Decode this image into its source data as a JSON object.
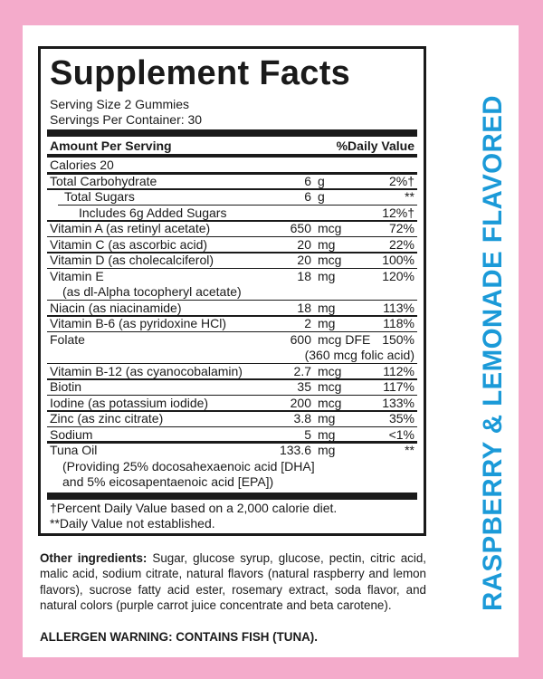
{
  "colors": {
    "background": "#f4abcb",
    "flavor_text": "#1b9ad8",
    "ink": "#1a1a1a"
  },
  "panel": {
    "title": "Supplement Facts",
    "serving_size": "Serving Size 2 Gummies",
    "servings_per_container": "Servings Per Container: 30",
    "header_amount": "Amount Per Serving",
    "header_dv": "%Daily Value",
    "rows": [
      {
        "name": "Calories  20",
        "amount": "",
        "unit": "",
        "dv": "",
        "indent": 0,
        "rule": "none"
      },
      {
        "name": "Total Carbohydrate",
        "amount": "6",
        "unit": "g",
        "dv": "2%†",
        "indent": 0,
        "rule": "medium"
      },
      {
        "name": "Total Sugars",
        "amount": "6",
        "unit": "g",
        "dv": "**",
        "indent": 1,
        "rule": "thin"
      },
      {
        "name": "Includes 6g Added Sugars",
        "amount": "",
        "unit": "",
        "dv": "12%†",
        "indent": 2,
        "rule": "thin-indent"
      },
      {
        "name": "Vitamin A (as retinyl acetate)",
        "amount": "650",
        "unit": "mcg",
        "dv": "72%",
        "indent": 0,
        "rule": "thin"
      },
      {
        "name": "Vitamin C (as ascorbic acid)",
        "amount": "20",
        "unit": "mg",
        "dv": "22%",
        "indent": 0,
        "rule": "thin"
      },
      {
        "name": "Vitamin D (as cholecalciferol)",
        "amount": "20",
        "unit": "mcg",
        "dv": "100%",
        "indent": 0,
        "rule": "thin"
      },
      {
        "name": "Vitamin E",
        "sub": "(as dl-Alpha tocopheryl acetate)",
        "amount": "18",
        "unit": "mg",
        "dv": "120%",
        "indent": 0,
        "rule": "thin"
      },
      {
        "name": "Niacin (as niacinamide)",
        "amount": "18",
        "unit": "mg",
        "dv": "113%",
        "indent": 0,
        "rule": "thin"
      },
      {
        "name": "Vitamin B-6 (as pyridoxine HCl)",
        "amount": "2",
        "unit": "mg",
        "dv": "118%",
        "indent": 0,
        "rule": "thin"
      },
      {
        "name": "Folate",
        "amount": "600",
        "unit": "mcg DFE",
        "dv": "150%",
        "sub_right": "(360 mcg folic acid)",
        "indent": 0,
        "rule": "thin"
      },
      {
        "name": "Vitamin B-12 (as cyanocobalamin)",
        "amount": "2.7",
        "unit": "mcg",
        "dv": "112%",
        "indent": 0,
        "rule": "thin"
      },
      {
        "name": "Biotin",
        "amount": "35",
        "unit": "mcg",
        "dv": "117%",
        "indent": 0,
        "rule": "thin"
      },
      {
        "name": "Iodine (as potassium iodide)",
        "amount": "200",
        "unit": "mcg",
        "dv": "133%",
        "indent": 0,
        "rule": "thin"
      },
      {
        "name": "Zinc (as zinc citrate)",
        "amount": "3.8",
        "unit": "mg",
        "dv": "35%",
        "indent": 0,
        "rule": "thin"
      },
      {
        "name": "Sodium",
        "amount": "5",
        "unit": "mg",
        "dv": "<1%",
        "indent": 0,
        "rule": "thin"
      },
      {
        "name": "Tuna Oil",
        "sub": "(Providing 25% docosahexaenoic acid [DHA]",
        "sub3": "and 5% eicosapentaenoic acid [EPA])",
        "amount": "133.6",
        "unit": "mg",
        "dv": "**",
        "indent": 0,
        "rule": "medium"
      }
    ],
    "footnote_1": "†Percent Daily Value based on a 2,000 calorie diet.",
    "footnote_2": "**Daily Value not established."
  },
  "ingredients": {
    "label": "Other ingredients:",
    "text": " Sugar, glucose syrup, glucose, pectin, citric acid, malic acid, sodium citrate, natural flavors (natural raspberry and lemon flavors), sucrose fatty acid ester, rosemary extract, soda flavor, and natural colors (purple carrot juice concentrate and beta carotene).",
    "allergen": "ALLERGEN WARNING: CONTAINS FISH (TUNA)."
  },
  "flavor": "RASPBERRY & LEMONADE FLAVORED"
}
